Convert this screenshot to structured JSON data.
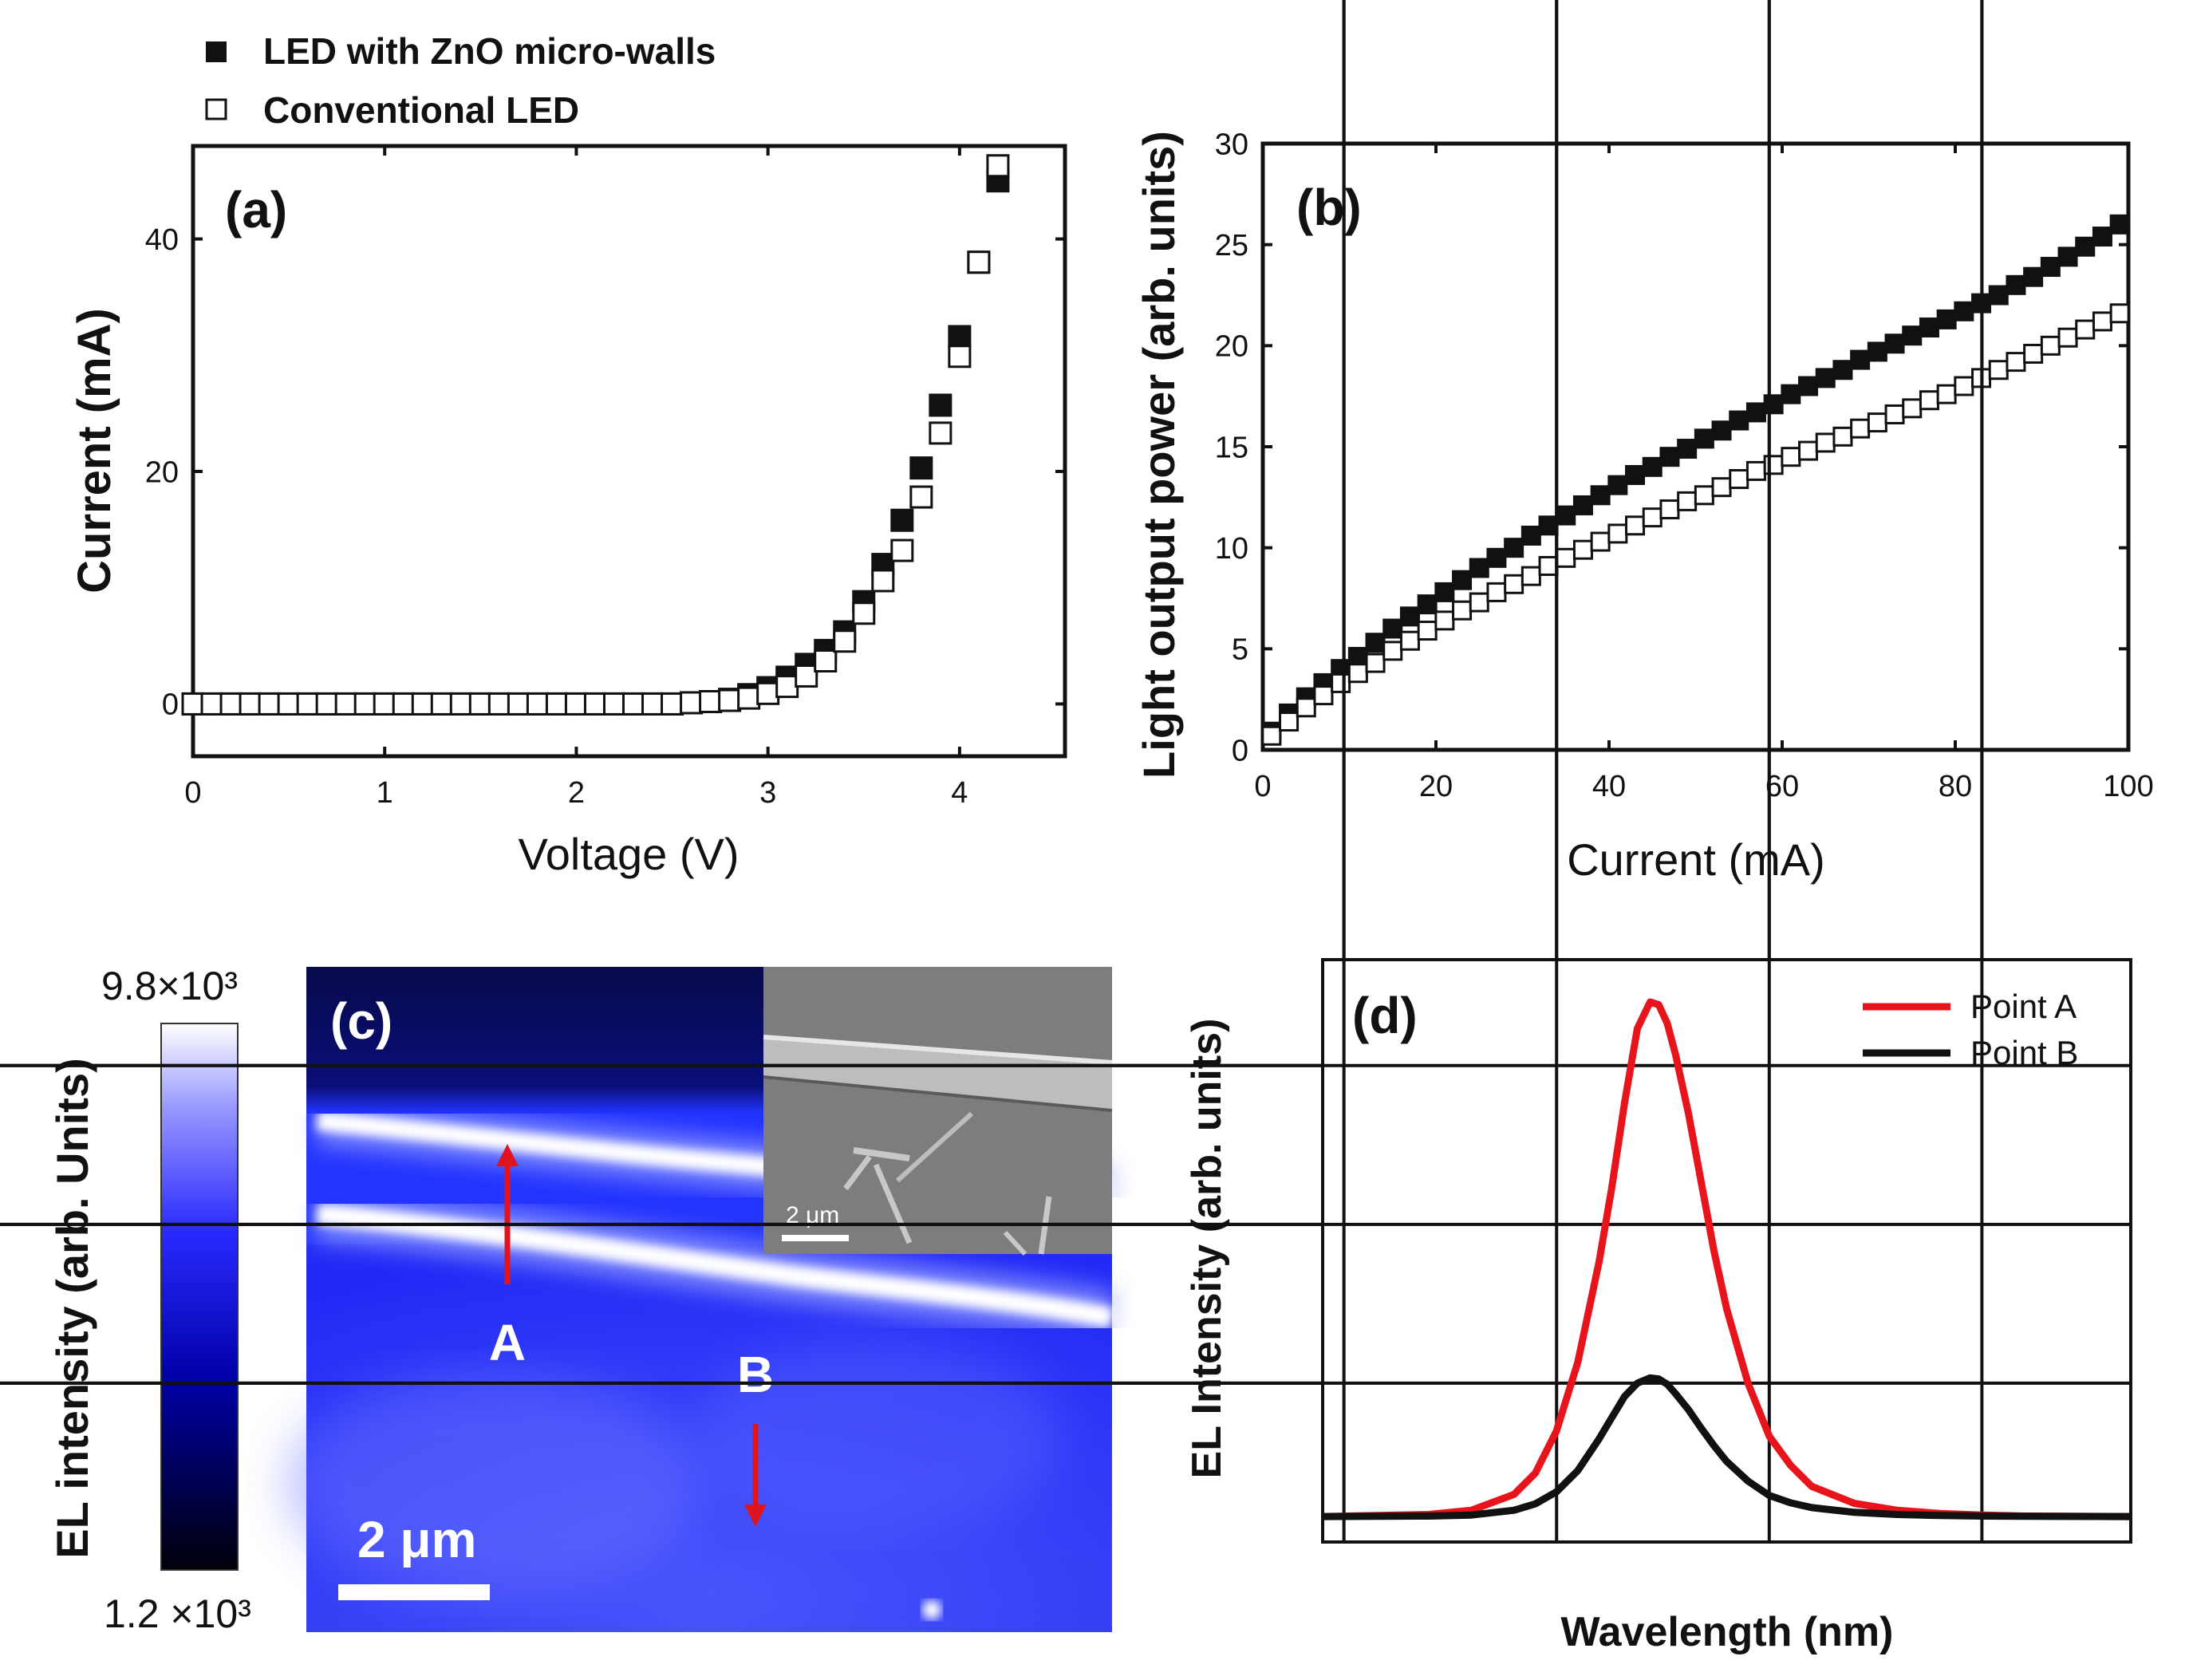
{
  "legend": {
    "items": [
      {
        "label": "LED with ZnO micro-walls",
        "marker": "filled-square"
      },
      {
        "label": "Conventional LED",
        "marker": "open-square"
      }
    ]
  },
  "panels": {
    "a": {
      "tag": "(a)"
    },
    "b": {
      "tag": "(b)"
    },
    "c": {
      "tag": "(c)",
      "colorbar_max": "9.8×10³",
      "colorbar_min": "1.2 ×10³",
      "colorbar_label": "EL intensity (arb. Units)",
      "scalebar_label": "2 μm",
      "inset_scalebar_label": "2 μm",
      "point_a": "A",
      "point_b": "B"
    },
    "d": {
      "tag": "(d)"
    }
  },
  "colors": {
    "axis": "#111111",
    "point_a": "#e8141c",
    "point_b": "#111111",
    "arrow": "#e0141c",
    "map_low": "#000010",
    "map_mid": "#1a1aff",
    "map_high": "#ffffff"
  },
  "chart_data": [
    {
      "id": "a",
      "type": "scatter",
      "xlabel": "Voltage (V)",
      "ylabel": "Current (mA)",
      "xlim": [
        0,
        4.55
      ],
      "ylim": [
        -4.5,
        48
      ],
      "xticks": [
        0,
        1,
        2,
        3,
        4
      ],
      "yticks": [
        0,
        20,
        40
      ],
      "series": [
        {
          "name": "LED with ZnO micro-walls",
          "marker": "filled",
          "x": [
            0,
            0.1,
            0.2,
            0.3,
            0.4,
            0.5,
            0.6,
            0.7,
            0.8,
            0.9,
            1.0,
            1.1,
            1.2,
            1.3,
            1.4,
            1.5,
            1.6,
            1.7,
            1.8,
            1.9,
            2.0,
            2.1,
            2.2,
            2.3,
            2.4,
            2.5,
            2.6,
            2.7,
            2.8,
            2.9,
            3.0,
            3.1,
            3.2,
            3.3,
            3.4,
            3.5,
            3.6,
            3.7,
            3.8,
            3.9,
            4.0,
            4.1,
            4.2
          ],
          "y": [
            0,
            0,
            0,
            0,
            0,
            0,
            0,
            0,
            0,
            0,
            0,
            0,
            0,
            0,
            0,
            0,
            0,
            0,
            0,
            0,
            0,
            0,
            0,
            0,
            0,
            0,
            0.1,
            0.2,
            0.4,
            0.8,
            1.4,
            2.3,
            3.4,
            4.6,
            6.2,
            8.8,
            12.0,
            15.8,
            20.3,
            25.7,
            31.6,
            38.0,
            45.0
          ]
        },
        {
          "name": "Conventional LED",
          "marker": "open",
          "x": [
            0,
            0.1,
            0.2,
            0.3,
            0.4,
            0.5,
            0.6,
            0.7,
            0.8,
            0.9,
            1.0,
            1.1,
            1.2,
            1.3,
            1.4,
            1.5,
            1.6,
            1.7,
            1.8,
            1.9,
            2.0,
            2.1,
            2.2,
            2.3,
            2.4,
            2.5,
            2.6,
            2.7,
            2.8,
            2.9,
            3.0,
            3.1,
            3.2,
            3.3,
            3.4,
            3.5,
            3.6,
            3.7,
            3.8,
            3.9,
            4.0,
            4.1,
            4.2
          ],
          "y": [
            0,
            0,
            0,
            0,
            0,
            0,
            0,
            0,
            0,
            0,
            0,
            0,
            0,
            0,
            0,
            0,
            0,
            0,
            0,
            0,
            0,
            0,
            0,
            0,
            0,
            0,
            0.1,
            0.2,
            0.3,
            0.5,
            0.9,
            1.5,
            2.4,
            3.7,
            5.4,
            7.8,
            10.6,
            13.2,
            17.8,
            23.3,
            29.9,
            38.0,
            46.3
          ]
        }
      ]
    },
    {
      "id": "b",
      "type": "scatter",
      "xlabel": "Current (mA)",
      "ylabel": "Light output power (arb. units)",
      "xlim": [
        0,
        100
      ],
      "ylim": [
        0,
        30
      ],
      "xticks": [
        0,
        20,
        40,
        60,
        80,
        100
      ],
      "yticks": [
        0,
        5,
        10,
        15,
        20,
        25,
        30
      ],
      "series": [
        {
          "name": "LED with ZnO micro-walls",
          "marker": "filled",
          "x": [
            1,
            3,
            5,
            7,
            9,
            11,
            13,
            15,
            17,
            19,
            21,
            23,
            25,
            27,
            29,
            31,
            33,
            35,
            37,
            39,
            41,
            43,
            45,
            47,
            49,
            51,
            53,
            55,
            57,
            59,
            61,
            63,
            65,
            67,
            69,
            71,
            73,
            75,
            77,
            79,
            81,
            83,
            85,
            87,
            89,
            91,
            93,
            95,
            97,
            99
          ],
          "y": [
            0.9,
            1.8,
            2.6,
            3.3,
            4.0,
            4.6,
            5.3,
            6.0,
            6.6,
            7.2,
            7.8,
            8.4,
            9.0,
            9.5,
            10.0,
            10.6,
            11.1,
            11.6,
            12.1,
            12.6,
            13.1,
            13.6,
            14.0,
            14.5,
            14.9,
            15.4,
            15.8,
            16.3,
            16.7,
            17.1,
            17.6,
            18.0,
            18.4,
            18.8,
            19.3,
            19.7,
            20.1,
            20.5,
            20.9,
            21.3,
            21.7,
            22.1,
            22.5,
            23.0,
            23.4,
            23.9,
            24.4,
            24.9,
            25.4,
            26.0
          ]
        },
        {
          "name": "Conventional LED",
          "marker": "open",
          "x": [
            1,
            3,
            5,
            7,
            9,
            11,
            13,
            15,
            17,
            19,
            21,
            23,
            25,
            27,
            29,
            31,
            33,
            35,
            37,
            39,
            41,
            43,
            45,
            47,
            49,
            51,
            53,
            55,
            57,
            59,
            61,
            63,
            65,
            67,
            69,
            71,
            73,
            75,
            77,
            79,
            81,
            83,
            85,
            87,
            89,
            91,
            93,
            95,
            97,
            99
          ],
          "y": [
            0.7,
            1.4,
            2.1,
            2.7,
            3.3,
            3.8,
            4.3,
            4.9,
            5.4,
            5.9,
            6.4,
            6.9,
            7.3,
            7.8,
            8.2,
            8.6,
            9.1,
            9.5,
            9.9,
            10.3,
            10.7,
            11.1,
            11.5,
            11.9,
            12.3,
            12.6,
            13.0,
            13.4,
            13.8,
            14.1,
            14.5,
            14.8,
            15.2,
            15.5,
            15.9,
            16.2,
            16.6,
            16.9,
            17.3,
            17.6,
            18.0,
            18.4,
            18.8,
            19.2,
            19.6,
            20.0,
            20.4,
            20.8,
            21.2,
            21.6
          ]
        }
      ]
    },
    {
      "id": "d",
      "type": "line",
      "xlabel": "Wavelength (nm)",
      "ylabel": "EL Intensity (arb. units)",
      "xlim": [
        395,
        585
      ],
      "ylim": [
        0,
        11000
      ],
      "xticks": [
        400,
        450,
        500,
        550
      ],
      "yticks": [
        3000,
        6000,
        9000
      ],
      "series": [
        {
          "name": "Point A",
          "x": [
            395,
            420,
            430,
            440,
            445,
            450,
            455,
            460,
            463,
            466,
            469,
            472,
            474,
            476,
            478,
            481,
            484,
            487,
            490,
            495,
            500,
            505,
            510,
            520,
            530,
            540,
            550,
            560,
            585
          ],
          "y": [
            480,
            520,
            600,
            900,
            1300,
            2100,
            3400,
            5300,
            6700,
            8300,
            9700,
            10200,
            10150,
            9800,
            9200,
            8100,
            6800,
            5500,
            4400,
            3000,
            2000,
            1450,
            1050,
            730,
            600,
            540,
            510,
            490,
            480
          ]
        },
        {
          "name": "Point B",
          "x": [
            395,
            420,
            430,
            440,
            445,
            450,
            455,
            460,
            463,
            466,
            469,
            472,
            474,
            476,
            478,
            481,
            484,
            487,
            490,
            495,
            500,
            505,
            510,
            520,
            530,
            540,
            550,
            560,
            585
          ],
          "y": [
            480,
            490,
            510,
            600,
            720,
            950,
            1350,
            1950,
            2350,
            2750,
            3000,
            3100,
            3080,
            2980,
            2800,
            2500,
            2150,
            1820,
            1520,
            1150,
            880,
            740,
            650,
            560,
            520,
            500,
            490,
            485,
            480
          ]
        }
      ]
    }
  ]
}
